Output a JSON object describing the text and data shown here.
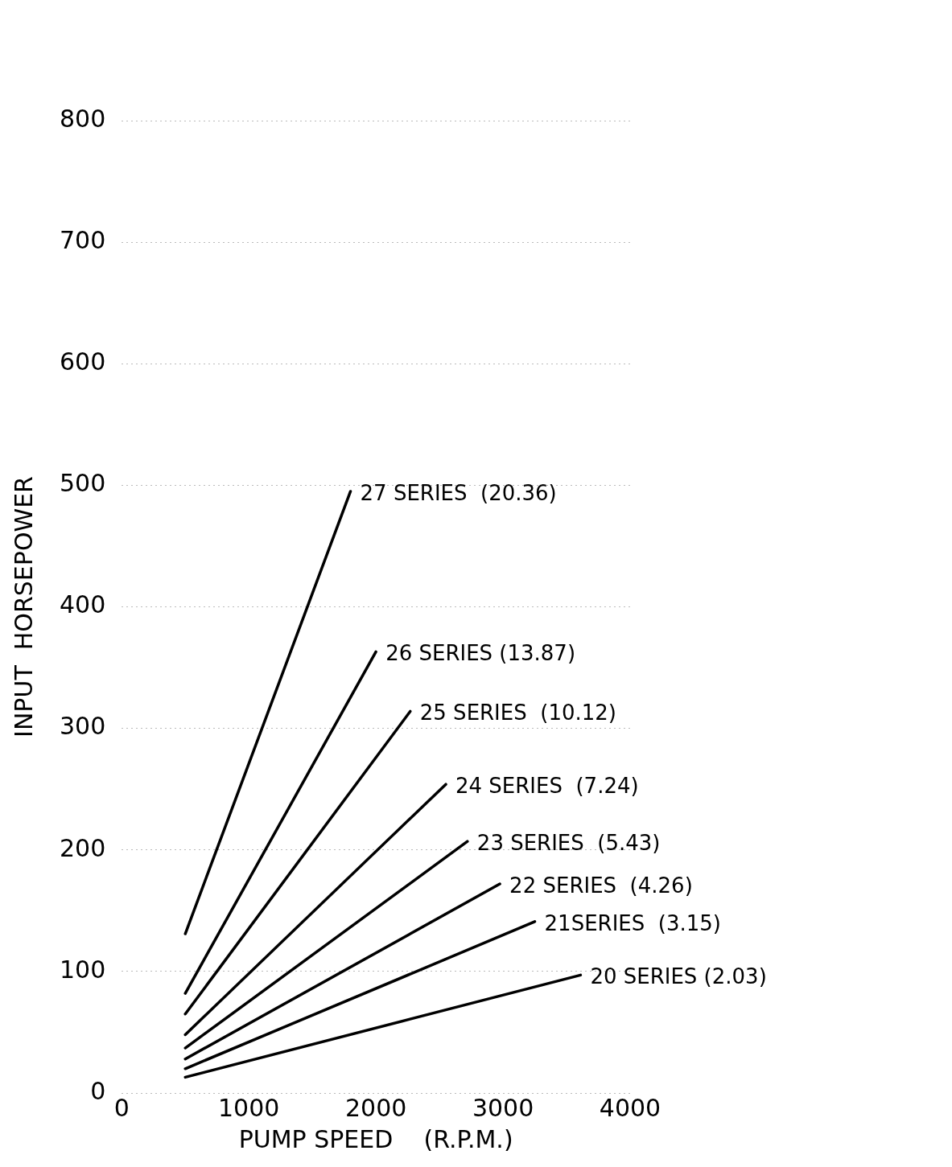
{
  "chart_data": {
    "type": "line",
    "xlabel": "PUMP SPEED    (R.P.M.)",
    "ylabel": "INPUT  HORSEPOWER",
    "xlim": [
      0,
      4000
    ],
    "ylim": [
      0,
      800
    ],
    "xticks": [
      0,
      1000,
      2000,
      3000,
      4000
    ],
    "yticks": [
      0,
      100,
      200,
      300,
      400,
      500,
      600,
      700,
      800
    ],
    "grid": "y",
    "legend": false,
    "marker": "none",
    "line_style": "solid",
    "series": [
      {
        "name": "27 SERIES  (20.36)",
        "color": "#000000",
        "x": [
          500,
          1800
        ],
        "values": [
          131,
          495
        ]
      },
      {
        "name": "26 SERIES (13.87)",
        "color": "#000000",
        "x": [
          500,
          2000
        ],
        "values": [
          82,
          363
        ]
      },
      {
        "name": "25 SERIES  (10.12)",
        "color": "#000000",
        "x": [
          500,
          2270
        ],
        "values": [
          65,
          314
        ]
      },
      {
        "name": "24 SERIES  (7.24)",
        "color": "#000000",
        "x": [
          500,
          2550
        ],
        "values": [
          48,
          254
        ]
      },
      {
        "name": "23 SERIES  (5.43)",
        "color": "#000000",
        "x": [
          500,
          2720
        ],
        "values": [
          37,
          207
        ]
      },
      {
        "name": "22 SERIES  (4.26)",
        "color": "#000000",
        "x": [
          500,
          2975
        ],
        "values": [
          28,
          172
        ]
      },
      {
        "name": "21SERIES  (3.15)",
        "color": "#000000",
        "x": [
          500,
          3250
        ],
        "values": [
          20,
          141
        ]
      },
      {
        "name": "20 SERIES (2.03)",
        "color": "#000000",
        "x": [
          500,
          3610
        ],
        "values": [
          13,
          97
        ]
      }
    ]
  }
}
